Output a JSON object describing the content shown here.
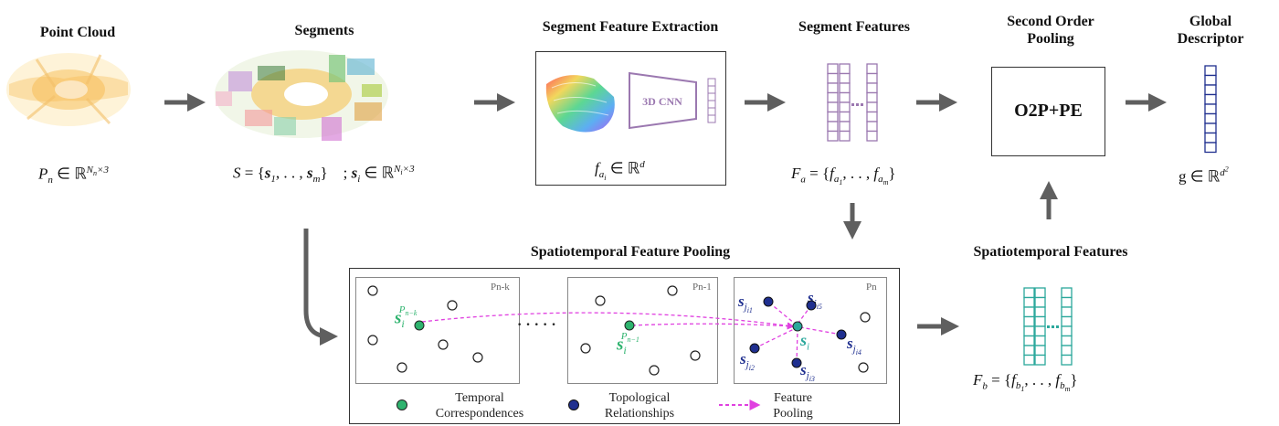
{
  "titles": {
    "point_cloud": "Point Cloud",
    "segments": "Segments",
    "segment_feature_extraction": "Segment Feature Extraction",
    "segment_features": "Segment Features",
    "second_order_pooling": "Second Order Pooling",
    "global_descriptor": "Global Descriptor",
    "spatiotemporal_feature_pooling": "Spatiotemporal Feature Pooling",
    "spatiotemporal_features": "Spatiotemporal Features"
  },
  "cnn_label": "3D CNN",
  "o2p_label": "O2P+PE",
  "frames": {
    "pnk": "Pn-k",
    "pn1": "Pn-1",
    "pn": "Pn"
  },
  "ellipsis": "· · · · ·",
  "legend": {
    "temporal": "Temporal Correspondences",
    "topological": "Topological Relationships",
    "pooling": "Feature Pooling"
  },
  "colors": {
    "arrow": "#5f5f5f",
    "purple": "#9b78b0",
    "teal": "#2ba89c",
    "navy": "#1f2f8f",
    "green": "#2eb36e",
    "magenta": "#e040e0"
  }
}
